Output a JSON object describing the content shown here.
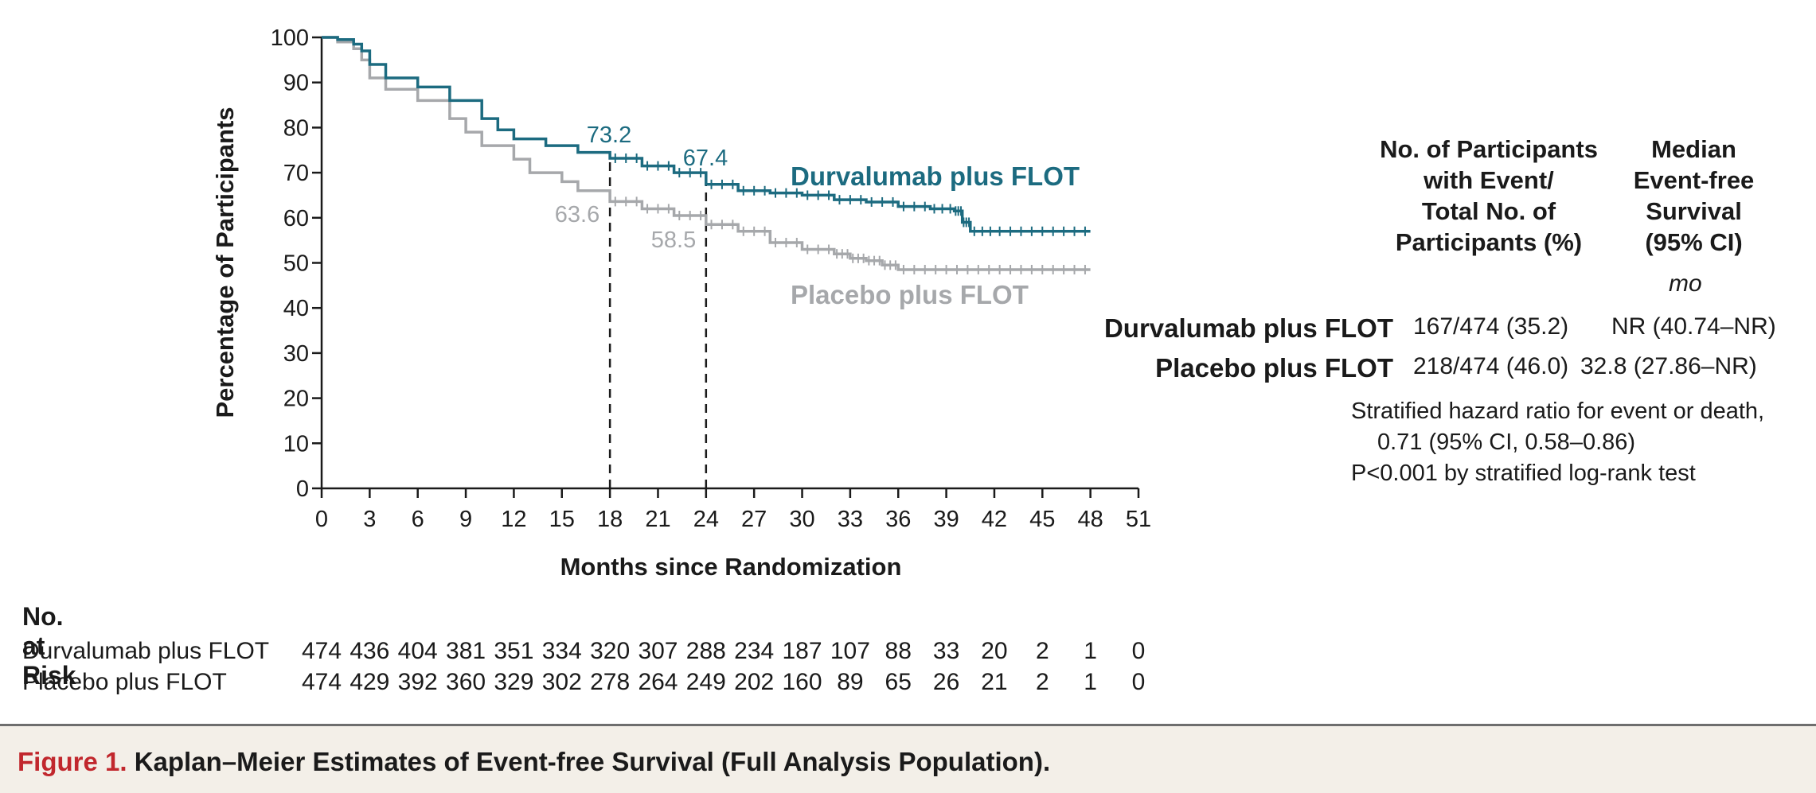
{
  "colors": {
    "durvalumab": "#1c6b80",
    "placebo": "#a6a8ab",
    "figure_label": "#c1272d"
  },
  "chart_data": {
    "type": "line",
    "title": "Kaplan–Meier Estimates of Event-free Survival (Full Analysis Population).",
    "xlabel": "Months since Randomization",
    "ylabel": "Percentage of Participants",
    "xlim": [
      0,
      51
    ],
    "ylim": [
      0,
      100
    ],
    "x_ticks": [
      0,
      3,
      6,
      9,
      12,
      15,
      18,
      21,
      24,
      27,
      30,
      33,
      36,
      39,
      42,
      45,
      48,
      51
    ],
    "y_ticks": [
      0,
      10,
      20,
      30,
      40,
      50,
      60,
      70,
      80,
      90,
      100
    ],
    "grid": false,
    "reference_lines_x": [
      18,
      24
    ],
    "series": [
      {
        "name": "Durvalumab plus FLOT",
        "color": "#1c6b80",
        "x": [
          0,
          1,
          2,
          2.5,
          3,
          4,
          6,
          8,
          10,
          11,
          12,
          14,
          16,
          18,
          20,
          22,
          24,
          26,
          28,
          30,
          32,
          34,
          36,
          38,
          39.5,
          40,
          40.5,
          42,
          44,
          46,
          48
        ],
        "y": [
          100,
          99.5,
          98.5,
          97,
          94,
          91,
          89,
          86,
          82,
          79.5,
          77.5,
          76,
          74.5,
          73.2,
          71.5,
          70,
          67.4,
          66,
          65.5,
          65,
          64,
          63.5,
          62.5,
          62,
          61.5,
          59,
          57,
          57,
          57,
          57,
          57
        ],
        "annotations": [
          {
            "x": 18,
            "y": 73.2,
            "label": "73.2"
          },
          {
            "x": 24,
            "y": 67.4,
            "label": "67.4"
          }
        ]
      },
      {
        "name": "Placebo plus FLOT",
        "color": "#a6a8ab",
        "x": [
          0,
          1,
          2,
          2.5,
          3,
          4,
          6,
          8,
          9,
          10,
          12,
          13,
          15,
          16,
          18,
          20,
          22,
          24,
          26,
          28,
          30,
          32,
          33,
          34,
          35,
          36,
          38,
          40,
          42,
          44,
          46,
          48
        ],
        "y": [
          100,
          99,
          97.5,
          95,
          91,
          88.5,
          86,
          82,
          79,
          76,
          73,
          70,
          68,
          66,
          63.6,
          62,
          60.5,
          58.5,
          57,
          54.5,
          53,
          52,
          51,
          50.5,
          49.5,
          48.5,
          48.5,
          48.5,
          48.5,
          48.5,
          48.5,
          48.5
        ],
        "annotations": [
          {
            "x": 18,
            "y": 63.6,
            "label": "63.6"
          },
          {
            "x": 24,
            "y": 58.5,
            "label": "58.5"
          }
        ]
      }
    ],
    "labels": {
      "y_ticks_text": [
        "0",
        "10",
        "20",
        "30",
        "40",
        "50",
        "60",
        "70",
        "80",
        "90",
        "100"
      ],
      "x_ticks_text": [
        "0",
        "3",
        "6",
        "9",
        "12",
        "15",
        "18",
        "21",
        "24",
        "27",
        "30",
        "33",
        "36",
        "39",
        "42",
        "45",
        "48",
        "51"
      ],
      "durvalumab_series": "Durvalumab plus FLOT",
      "placebo_series": "Placebo plus FLOT",
      "ann_d18": "73.2",
      "ann_d24": "67.4",
      "ann_p18": "63.6",
      "ann_p24": "58.5"
    }
  },
  "summary_table": {
    "col1_header": "No. of Participants\nwith Event/\nTotal No. of\nParticipants (%)",
    "col2_header": "Median\nEvent-free\nSurvival\n(95% CI)",
    "col2_unit": "mo",
    "rows": [
      {
        "group": "Durvalumab plus FLOT",
        "events": "167/474 (35.2)",
        "median": "NR (40.74–NR)"
      },
      {
        "group": "Placebo plus FLOT",
        "events": "218/474 (46.0)",
        "median": "32.8 (27.86–NR)"
      }
    ],
    "notes": [
      "Stratified hazard ratio for event or death,",
      "0.71 (95% CI, 0.58–0.86)",
      "P<0.001 by stratified log-rank test"
    ]
  },
  "risk_table": {
    "title": "No. at Risk",
    "rows": [
      {
        "label": "Durvalumab plus FLOT",
        "values": [
          "474",
          "436",
          "404",
          "381",
          "351",
          "334",
          "320",
          "307",
          "288",
          "234",
          "187",
          "107",
          "88",
          "33",
          "20",
          "2",
          "1",
          "0"
        ]
      },
      {
        "label": "Placebo plus FLOT",
        "values": [
          "474",
          "429",
          "392",
          "360",
          "329",
          "302",
          "278",
          "264",
          "249",
          "202",
          "160",
          "89",
          "65",
          "26",
          "21",
          "2",
          "1",
          "0"
        ]
      }
    ]
  },
  "caption": {
    "figure_label": "Figure 1.",
    "text": "Kaplan–Meier Estimates of Event-free Survival (Full Analysis Population)."
  }
}
